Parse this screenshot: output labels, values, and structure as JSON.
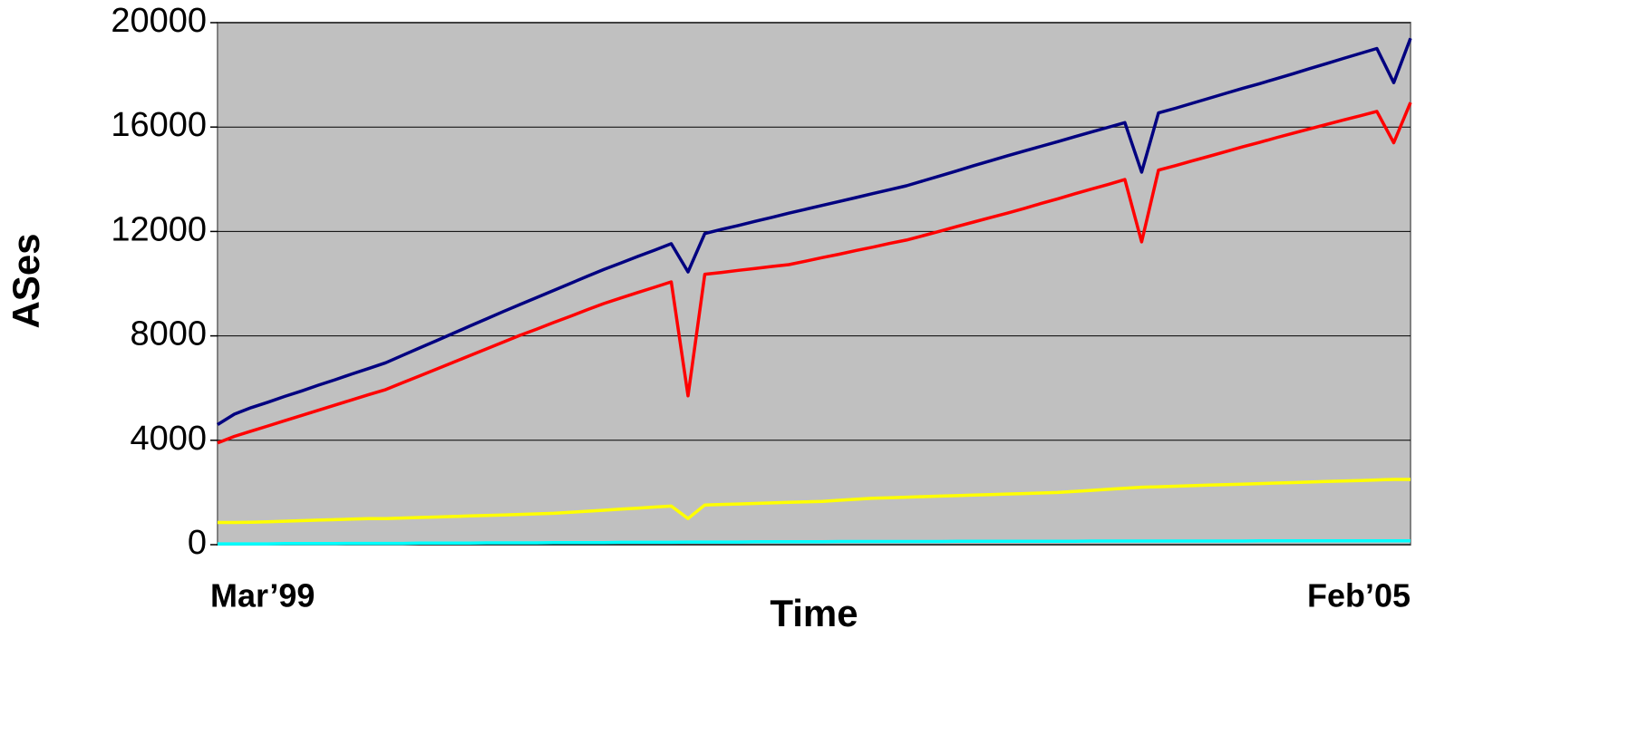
{
  "chart_data": {
    "type": "line",
    "xlabel": "Time",
    "ylabel": "ASes",
    "categories": [
      "Mar’99",
      null,
      null,
      null,
      null,
      null,
      null,
      null,
      null,
      null,
      null,
      null,
      null,
      null,
      null,
      null,
      null,
      null,
      null,
      null,
      null,
      null,
      null,
      null,
      null,
      null,
      null,
      null,
      null,
      null,
      null,
      null,
      null,
      null,
      null,
      null,
      null,
      null,
      null,
      null,
      null,
      null,
      null,
      null,
      null,
      null,
      null,
      null,
      null,
      null,
      null,
      null,
      null,
      null,
      null,
      null,
      null,
      null,
      null,
      null,
      null,
      null,
      null,
      null,
      null,
      null,
      null,
      null,
      null,
      null,
      null,
      "Feb’05"
    ],
    "series": [
      {
        "color": "#000080",
        "values": [
          4600,
          5000,
          5250,
          5460,
          5680,
          5890,
          6110,
          6320,
          6540,
          6750,
          6970,
          7250,
          7530,
          7810,
          8090,
          8370,
          8650,
          8930,
          9200,
          9470,
          9740,
          10010,
          10280,
          10550,
          10790,
          11040,
          11280,
          11530,
          10450,
          11920,
          12080,
          12230,
          12390,
          12540,
          12700,
          12850,
          13000,
          13150,
          13300,
          13450,
          13600,
          13750,
          13940,
          14130,
          14320,
          14520,
          14710,
          14900,
          15080,
          15260,
          15440,
          15630,
          15810,
          15990,
          16170,
          14270,
          16540,
          16720,
          16910,
          17100,
          17290,
          17480,
          17660,
          17850,
          18040,
          18240,
          18430,
          18630,
          18820,
          19010,
          17700,
          19400
        ]
      },
      {
        "color": "#ff0000",
        "values": [
          3900,
          4150,
          4350,
          4550,
          4750,
          4950,
          5150,
          5350,
          5550,
          5750,
          5940,
          6200,
          6460,
          6720,
          6980,
          7240,
          7500,
          7760,
          8020,
          8260,
          8510,
          8750,
          9000,
          9240,
          9450,
          9660,
          9860,
          10070,
          5700,
          10360,
          10430,
          10510,
          10580,
          10660,
          10730,
          10860,
          11000,
          11130,
          11270,
          11400,
          11540,
          11670,
          11840,
          12010,
          12190,
          12360,
          12530,
          12700,
          12880,
          13070,
          13250,
          13440,
          13620,
          13800,
          13990,
          11600,
          14350,
          14520,
          14700,
          14880,
          15060,
          15240,
          15410,
          15590,
          15760,
          15930,
          16100,
          16270,
          16430,
          16600,
          15400,
          16940
        ]
      },
      {
        "color": "#ffff00",
        "values": [
          850,
          850,
          860,
          880,
          900,
          920,
          940,
          960,
          980,
          1000,
          1000,
          1020,
          1040,
          1060,
          1080,
          1100,
          1120,
          1140,
          1160,
          1180,
          1200,
          1240,
          1280,
          1320,
          1360,
          1400,
          1440,
          1480,
          1000,
          1520,
          1540,
          1560,
          1580,
          1600,
          1620,
          1640,
          1660,
          1700,
          1740,
          1780,
          1800,
          1820,
          1840,
          1860,
          1880,
          1900,
          1920,
          1940,
          1960,
          1980,
          2000,
          2040,
          2080,
          2120,
          2160,
          2200,
          2220,
          2240,
          2260,
          2280,
          2300,
          2320,
          2340,
          2360,
          2380,
          2400,
          2420,
          2440,
          2460,
          2480,
          2500,
          2500
        ]
      },
      {
        "color": "#00ffff",
        "values": [
          30,
          30,
          30,
          30,
          40,
          40,
          40,
          40,
          50,
          50,
          50,
          50,
          60,
          60,
          60,
          60,
          70,
          70,
          70,
          70,
          80,
          80,
          80,
          80,
          90,
          90,
          90,
          90,
          100,
          100,
          100,
          100,
          110,
          110,
          110,
          110,
          110,
          120,
          120,
          120,
          120,
          120,
          120,
          120,
          130,
          130,
          130,
          130,
          130,
          130,
          130,
          130,
          140,
          140,
          140,
          140,
          140,
          140,
          140,
          140,
          140,
          140,
          150,
          150,
          150,
          150,
          150,
          150,
          150,
          150,
          150,
          150
        ]
      }
    ],
    "ylim": [
      0,
      20000
    ],
    "yticks": [
      0,
      4000,
      8000,
      12000,
      16000,
      20000
    ],
    "grid": true
  }
}
